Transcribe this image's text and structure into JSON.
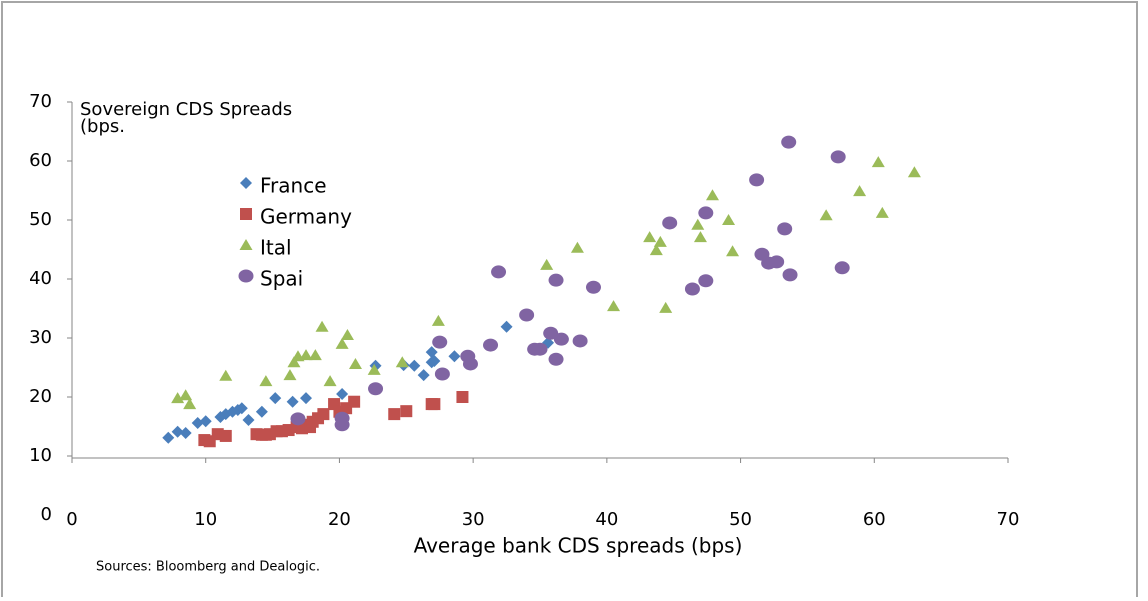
{
  "chart_data": {
    "type": "scatter",
    "y_label": [
      "Sovereign CDS Spreads",
      "(bps."
    ],
    "x_label": "Average bank CDS spreads (bps)",
    "source": "Sources: Bloomberg and Dealogic.",
    "xlim": [
      0,
      70
    ],
    "xticks": [
      0,
      10,
      20,
      30,
      40,
      50,
      60,
      70
    ],
    "ylim": [
      0,
      70
    ],
    "yticks": [
      0,
      10,
      20,
      30,
      40,
      50,
      60,
      70
    ],
    "series": [
      {
        "name": "France",
        "color": "#4a7ebb",
        "marker": "diamond",
        "x": [
          7.2,
          7.9,
          8.5,
          9.4,
          10.0,
          11.1,
          11.5,
          12.0,
          12.4,
          12.7,
          13.2,
          14.2,
          15.2,
          16.5,
          17.5,
          20.2,
          22.7,
          24.8,
          25.6,
          26.3,
          26.9,
          26.9,
          27.1,
          28.6,
          32.5,
          35.6
        ],
        "values": [
          13.1,
          14.1,
          13.9,
          15.6,
          15.9,
          16.6,
          17.1,
          17.5,
          17.8,
          18.1,
          16.1,
          17.5,
          19.8,
          19.2,
          19.8,
          20.5,
          25.3,
          25.4,
          25.3,
          23.7,
          27.6,
          25.9,
          26.1,
          26.9,
          31.9,
          29.2
        ]
      },
      {
        "name": "Germany",
        "color": "#c0504d",
        "marker": "square",
        "x": [
          9.9,
          10.3,
          10.9,
          11.5,
          13.8,
          14.2,
          14.5,
          14.8,
          15.3,
          15.7,
          16.2,
          16.8,
          17.2,
          17.5,
          17.8,
          18.0,
          18.4,
          18.8,
          19.6,
          20.0,
          20.5,
          21.1,
          24.1,
          25.0,
          26.9,
          27.1,
          29.2
        ],
        "values": [
          12.7,
          12.5,
          13.7,
          13.4,
          13.7,
          13.6,
          13.6,
          13.7,
          14.2,
          14.2,
          14.4,
          14.9,
          14.7,
          15.3,
          14.9,
          15.8,
          16.4,
          17.1,
          18.8,
          17.5,
          18.1,
          19.2,
          17.1,
          17.6,
          18.8,
          18.8,
          20.0
        ]
      },
      {
        "name": "Ital",
        "color": "#9bbb59",
        "marker": "triangle",
        "x": [
          7.9,
          8.5,
          8.8,
          11.5,
          14.5,
          16.3,
          16.9,
          16.6,
          17.5,
          18.2,
          18.7,
          19.3,
          20.2,
          20.6,
          21.2,
          22.6,
          24.7,
          27.4,
          35.5,
          37.8,
          40.5,
          43.2,
          43.7,
          44.0,
          44.4,
          47.9,
          49.4,
          46.8,
          47.0,
          49.1,
          56.4,
          58.9,
          60.3,
          60.6,
          63.0
        ],
        "values": [
          19.8,
          20.3,
          18.8,
          23.6,
          22.7,
          23.7,
          26.9,
          25.9,
          27.1,
          27.1,
          31.9,
          22.7,
          29.0,
          30.5,
          25.6,
          24.6,
          25.9,
          32.9,
          42.4,
          45.3,
          35.4,
          47.1,
          44.9,
          46.3,
          35.1,
          54.2,
          44.7,
          49.2,
          47.1,
          50.0,
          50.8,
          54.9,
          59.8,
          51.2,
          58.1
        ]
      },
      {
        "name": "Spai",
        "color": "#8064a2",
        "marker": "circle",
        "x": [
          16.9,
          20.2,
          20.2,
          22.7,
          27.5,
          27.7,
          29.6,
          29.8,
          31.3,
          31.9,
          34.0,
          34.6,
          35.0,
          35.8,
          36.2,
          36.2,
          36.6,
          38.0,
          39.0,
          44.7,
          47.4,
          47.4,
          46.4,
          51.2,
          51.6,
          52.1,
          52.7,
          53.3,
          53.6,
          53.7,
          57.3,
          57.6
        ],
        "values": [
          16.3,
          16.4,
          15.3,
          21.4,
          29.3,
          23.9,
          26.9,
          25.6,
          28.8,
          41.2,
          33.9,
          28.1,
          28.1,
          30.8,
          26.4,
          39.8,
          29.8,
          29.5,
          38.6,
          49.5,
          51.2,
          39.7,
          38.3,
          56.8,
          44.2,
          42.7,
          42.9,
          48.5,
          63.2,
          40.7,
          60.7,
          41.9
        ]
      }
    ]
  }
}
